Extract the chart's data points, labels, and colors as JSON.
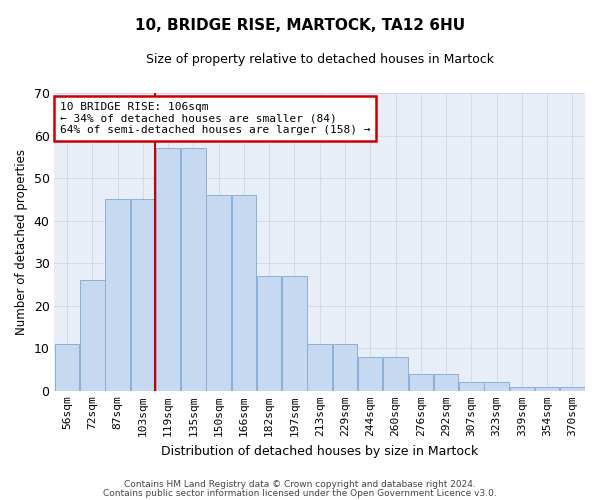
{
  "title1": "10, BRIDGE RISE, MARTOCK, TA12 6HU",
  "title2": "Size of property relative to detached houses in Martock",
  "xlabel": "Distribution of detached houses by size in Martock",
  "ylabel": "Number of detached properties",
  "categories": [
    "56sqm",
    "72sqm",
    "87sqm",
    "103sqm",
    "119sqm",
    "135sqm",
    "150sqm",
    "166sqm",
    "182sqm",
    "197sqm",
    "213sqm",
    "229sqm",
    "244sqm",
    "260sqm",
    "276sqm",
    "292sqm",
    "307sqm",
    "323sqm",
    "339sqm",
    "354sqm",
    "370sqm"
  ],
  "values": [
    11,
    26,
    45,
    45,
    57,
    57,
    46,
    46,
    27,
    27,
    11,
    11,
    8,
    8,
    4,
    4,
    2,
    2,
    1,
    1,
    1
  ],
  "bar_color": "#c6d9f1",
  "bar_edge_color": "#8ab0d8",
  "ref_line_color": "#cc0000",
  "ref_line_x": 3.5,
  "annotation_line1": "10 BRIDGE RISE: 106sqm",
  "annotation_line2": "← 34% of detached houses are smaller (84)",
  "annotation_line3": "64% of semi-detached houses are larger (158) →",
  "annotation_box_fc": "#ffffff",
  "annotation_box_ec": "#cc0000",
  "ylim": [
    0,
    70
  ],
  "yticks": [
    0,
    10,
    20,
    30,
    40,
    50,
    60,
    70
  ],
  "grid_color": "#d0daea",
  "bg_color": "#e8eef8",
  "footer1": "Contains HM Land Registry data © Crown copyright and database right 2024.",
  "footer2": "Contains public sector information licensed under the Open Government Licence v3.0."
}
